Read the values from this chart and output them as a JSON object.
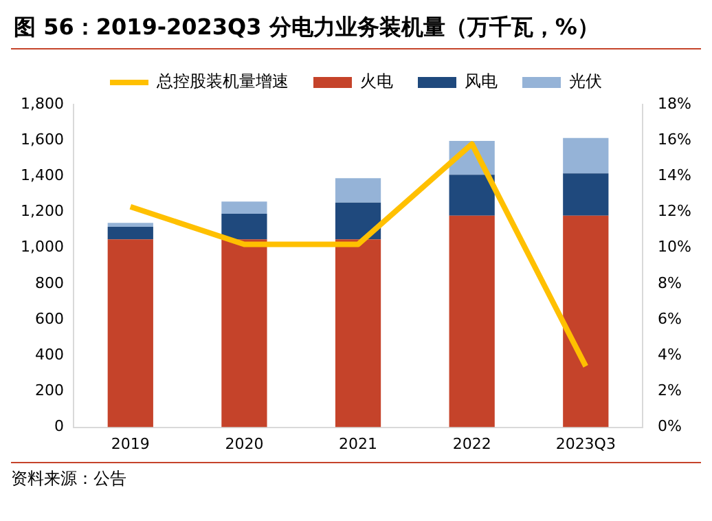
{
  "chart_data": {
    "type": "bar",
    "title": "图 56：2019-2023Q3 分电力业务装机量（万千瓦，%）",
    "categories": [
      "2019",
      "2020",
      "2021",
      "2022",
      "2023Q3"
    ],
    "stacked": true,
    "series": [
      {
        "name": "火电",
        "color": "#c5432a",
        "values": [
          1048,
          1048,
          1048,
          1180,
          1180
        ]
      },
      {
        "name": "风电",
        "color": "#1f497d",
        "values": [
          70,
          143,
          205,
          228,
          236
        ]
      },
      {
        "name": "光伏",
        "color": "#95b3d7",
        "values": [
          22,
          68,
          136,
          189,
          197
        ]
      },
      {
        "name": "总控股装机量增速",
        "type": "line",
        "axis": "y2",
        "color": "#ffc000",
        "marker": "none",
        "values": [
          12.3,
          10.2,
          10.2,
          15.8,
          3.4
        ]
      }
    ],
    "ylim": [
      0,
      1800
    ],
    "yticks": [
      {
        "value": 0,
        "label": "0"
      },
      {
        "value": 200,
        "label": "200"
      },
      {
        "value": 400,
        "label": "400"
      },
      {
        "value": 600,
        "label": "600"
      },
      {
        "value": 800,
        "label": "800"
      },
      {
        "value": 1000,
        "label": "1,000"
      },
      {
        "value": 1200,
        "label": "1,200"
      },
      {
        "value": 1400,
        "label": "1,400"
      },
      {
        "value": 1600,
        "label": "1,600"
      },
      {
        "value": 1800,
        "label": "1,800"
      }
    ],
    "y2lim": [
      0,
      18
    ],
    "y2ticks": [
      {
        "value": 0,
        "label": "0%"
      },
      {
        "value": 2,
        "label": "2%"
      },
      {
        "value": 4,
        "label": "4%"
      },
      {
        "value": 6,
        "label": "6%"
      },
      {
        "value": 8,
        "label": "8%"
      },
      {
        "value": 10,
        "label": "10%"
      },
      {
        "value": 12,
        "label": "12%"
      },
      {
        "value": 14,
        "label": "14%"
      },
      {
        "value": 16,
        "label": "16%"
      },
      {
        "value": 18,
        "label": "18%"
      }
    ],
    "legend": "top",
    "grid": false,
    "annotations": [
      "资料来源：公告"
    ]
  }
}
